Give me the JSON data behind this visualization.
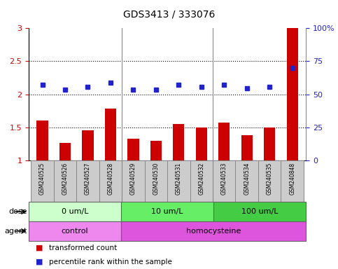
{
  "title": "GDS3413 / 333076",
  "samples": [
    "GSM240525",
    "GSM240526",
    "GSM240527",
    "GSM240528",
    "GSM240529",
    "GSM240530",
    "GSM240531",
    "GSM240532",
    "GSM240533",
    "GSM240534",
    "GSM240535",
    "GSM240848"
  ],
  "bar_values": [
    1.6,
    1.26,
    1.45,
    1.78,
    1.33,
    1.3,
    1.55,
    1.5,
    1.57,
    1.38,
    1.5,
    3.0
  ],
  "dot_values": [
    2.14,
    2.07,
    2.11,
    2.18,
    2.07,
    2.07,
    2.14,
    2.11,
    2.14,
    2.09,
    2.11,
    2.4
  ],
  "bar_color": "#cc0000",
  "dot_color": "#2222cc",
  "ylim_left": [
    1.0,
    3.0
  ],
  "ylim_right": [
    0,
    100
  ],
  "yticks_left": [
    1.0,
    1.5,
    2.0,
    2.5,
    3.0
  ],
  "ytick_labels_left": [
    "1",
    "1.5",
    "2",
    "2.5",
    "3"
  ],
  "yticks_right": [
    0,
    25,
    50,
    75,
    100
  ],
  "ytick_labels_right": [
    "0",
    "25",
    "50",
    "75",
    "100%"
  ],
  "hlines": [
    1.5,
    2.0,
    2.5
  ],
  "dose_groups": [
    {
      "label": "0 um/L",
      "start": 0,
      "end": 4,
      "color": "#ccffcc"
    },
    {
      "label": "10 um/L",
      "start": 4,
      "end": 8,
      "color": "#66ee66"
    },
    {
      "label": "100 um/L",
      "start": 8,
      "end": 12,
      "color": "#44cc44"
    }
  ],
  "agent_groups": [
    {
      "label": "control",
      "start": 0,
      "end": 4,
      "color": "#ee88ee"
    },
    {
      "label": "homocysteine",
      "start": 4,
      "end": 12,
      "color": "#dd55dd"
    }
  ],
  "dose_label": "dose",
  "agent_label": "agent",
  "legend_bar": "transformed count",
  "legend_dot": "percentile rank within the sample",
  "xtick_bg_color": "#cccccc",
  "xtick_border_color": "#888888"
}
